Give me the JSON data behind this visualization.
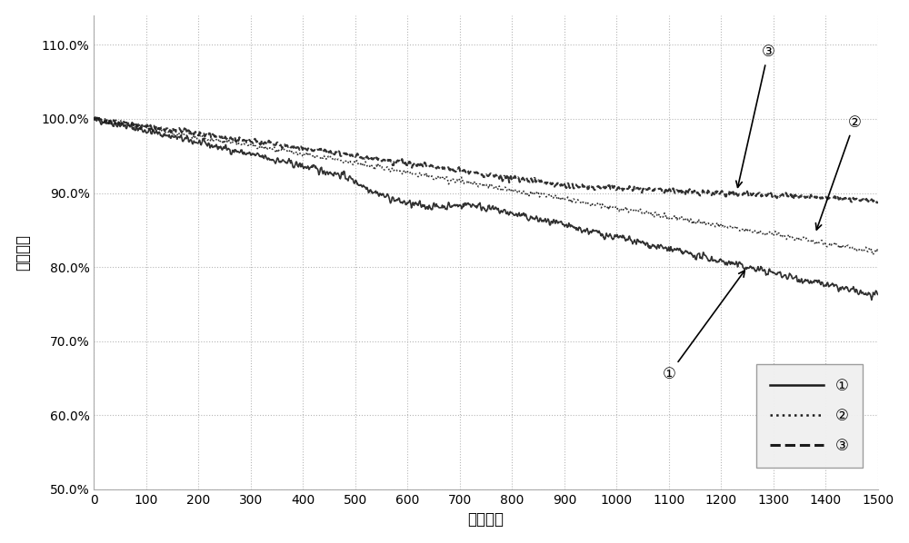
{
  "title": "",
  "xlabel": "循环次数",
  "ylabel": "放电容量",
  "xlim": [
    0,
    1500
  ],
  "ylim": [
    0.5,
    1.14
  ],
  "yticks": [
    0.5,
    0.6,
    0.7,
    0.8,
    0.9,
    1.0,
    1.1
  ],
  "ytick_labels": [
    "50.0%",
    "60.0%",
    "70.0%",
    "80.0%",
    "90.0%",
    "100.0%",
    "110.0%"
  ],
  "xticks": [
    0,
    100,
    200,
    300,
    400,
    500,
    600,
    700,
    800,
    900,
    1000,
    1100,
    1200,
    1300,
    1400,
    1500
  ],
  "background_color": "#ffffff",
  "grid_color": "#b0b0b0",
  "line_color": "#1a1a1a",
  "legend_labels": [
    "①",
    "②",
    "③"
  ],
  "annotation1_text": "①",
  "annotation2_text": "②",
  "annotation3_text": "③",
  "noise_seed": 42
}
